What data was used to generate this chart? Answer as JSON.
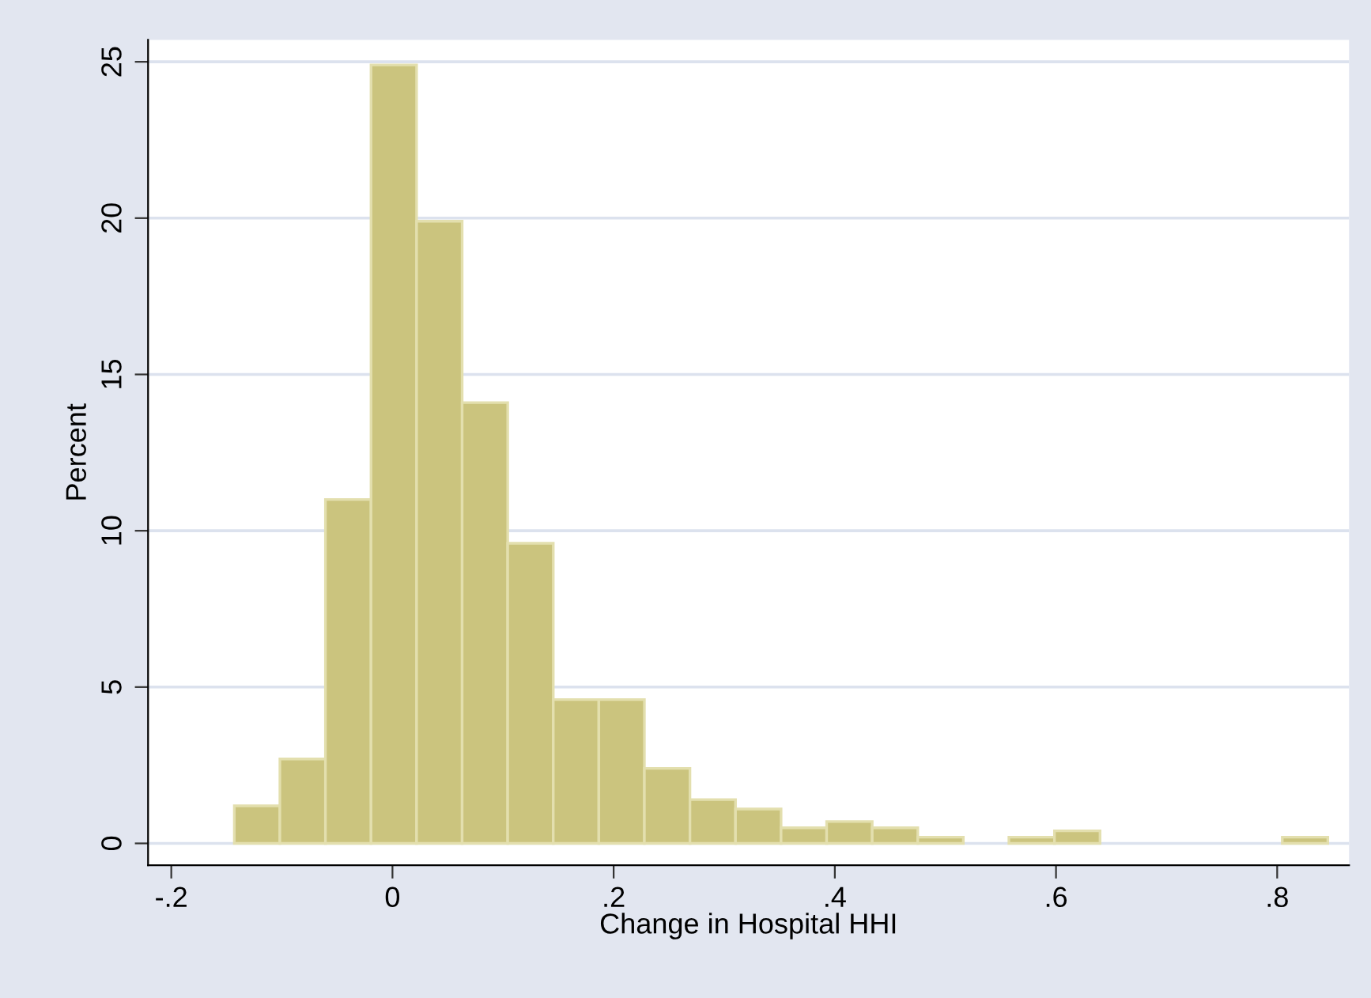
{
  "chart_data": {
    "type": "histogram",
    "xlabel": "Change in Hospital HHI",
    "ylabel": "Percent",
    "bins": [
      -0.143,
      -0.1018,
      -0.0606,
      -0.0194,
      0.0218,
      0.063,
      0.1042,
      0.1454,
      0.1866,
      0.2278,
      0.269,
      0.3102,
      0.3514,
      0.3926,
      0.4338,
      0.475,
      0.5162,
      0.5574,
      0.5986,
      0.6398,
      0.681,
      0.7222,
      0.7634,
      0.8046,
      0.8458
    ],
    "values": [
      1.2,
      2.7,
      11,
      24.9,
      19.9,
      14.1,
      9.6,
      4.6,
      4.6,
      2.4,
      1.4,
      1.1,
      0.5,
      0.7,
      0.5,
      0.2,
      0,
      0.2,
      0.4,
      0,
      0,
      0,
      0,
      0.2
    ],
    "color": "#cbc47e",
    "xlim": [
      -0.221,
      0.865
    ],
    "ylim": [
      -0.7,
      25.7
    ],
    "xticks": [
      {
        "value": -0.2,
        "label": "-.2"
      },
      0,
      {
        "value": 0.2,
        "label": ".2"
      },
      {
        "value": 0.4,
        "label": ".4"
      },
      {
        "value": 0.6,
        "label": ".6"
      },
      {
        "value": 0.8,
        "label": ".8"
      }
    ],
    "yticks": [
      0,
      5,
      10,
      15,
      20,
      25
    ],
    "grid": "y"
  }
}
